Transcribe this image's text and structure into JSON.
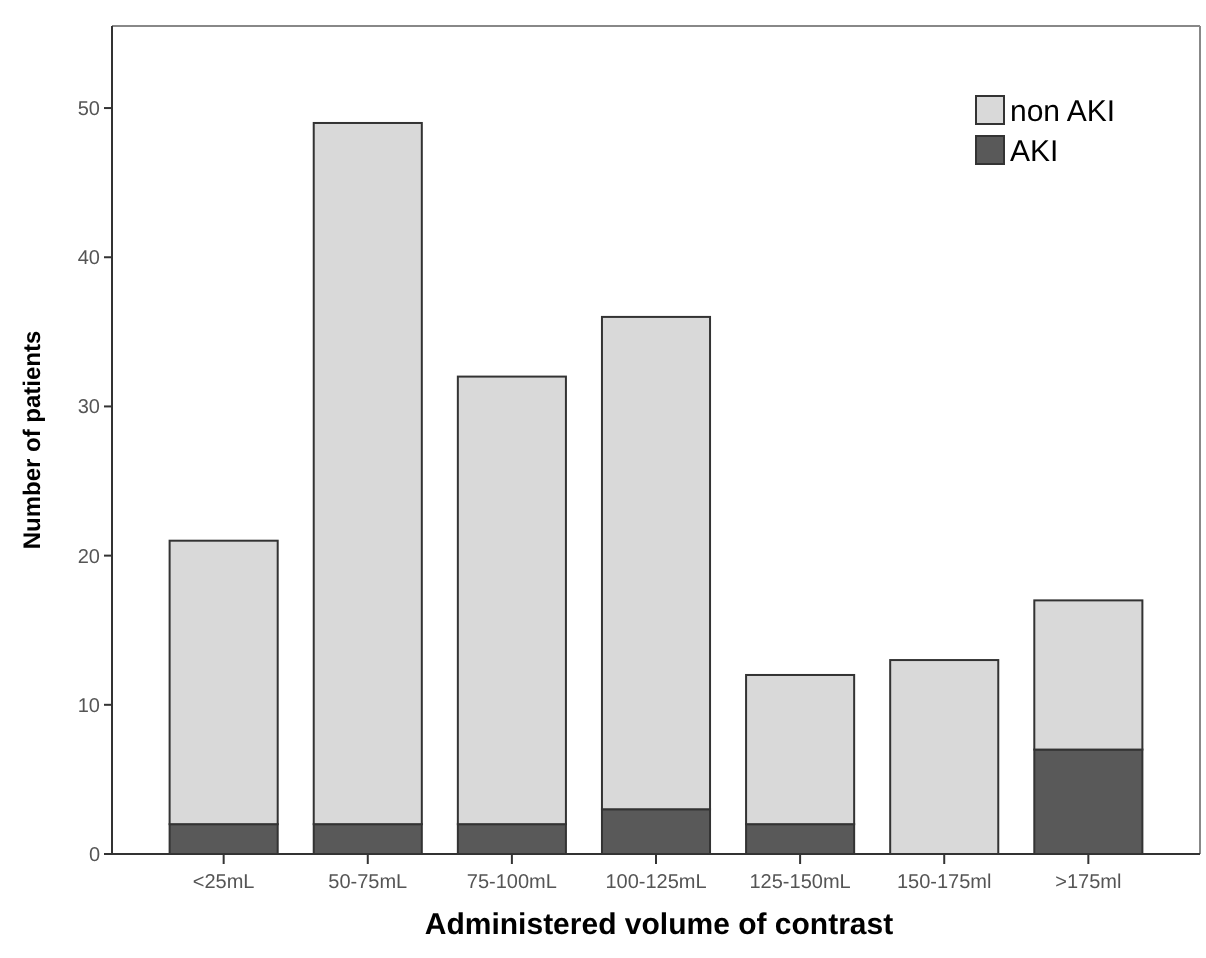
{
  "chart_data": {
    "type": "bar",
    "stacked": true,
    "xlabel": "Administered volume of contrast",
    "ylabel": "Number of patients",
    "categories": [
      "<25mL",
      "50-75mL",
      "75-100mL",
      "100-125mL",
      "125-150mL",
      "150-175ml",
      ">175ml"
    ],
    "series": [
      {
        "name": "AKI",
        "color": "#595959",
        "values": [
          2,
          2,
          2,
          3,
          2,
          0,
          7
        ]
      },
      {
        "name": "non AKI",
        "color": "#d9d9d9",
        "values": [
          19,
          47,
          30,
          33,
          10,
          13,
          10
        ]
      }
    ],
    "ylim": [
      0,
      55.5
    ],
    "yticks": [
      0,
      10,
      20,
      30,
      40,
      50
    ],
    "grid": false,
    "legend": "top right"
  }
}
